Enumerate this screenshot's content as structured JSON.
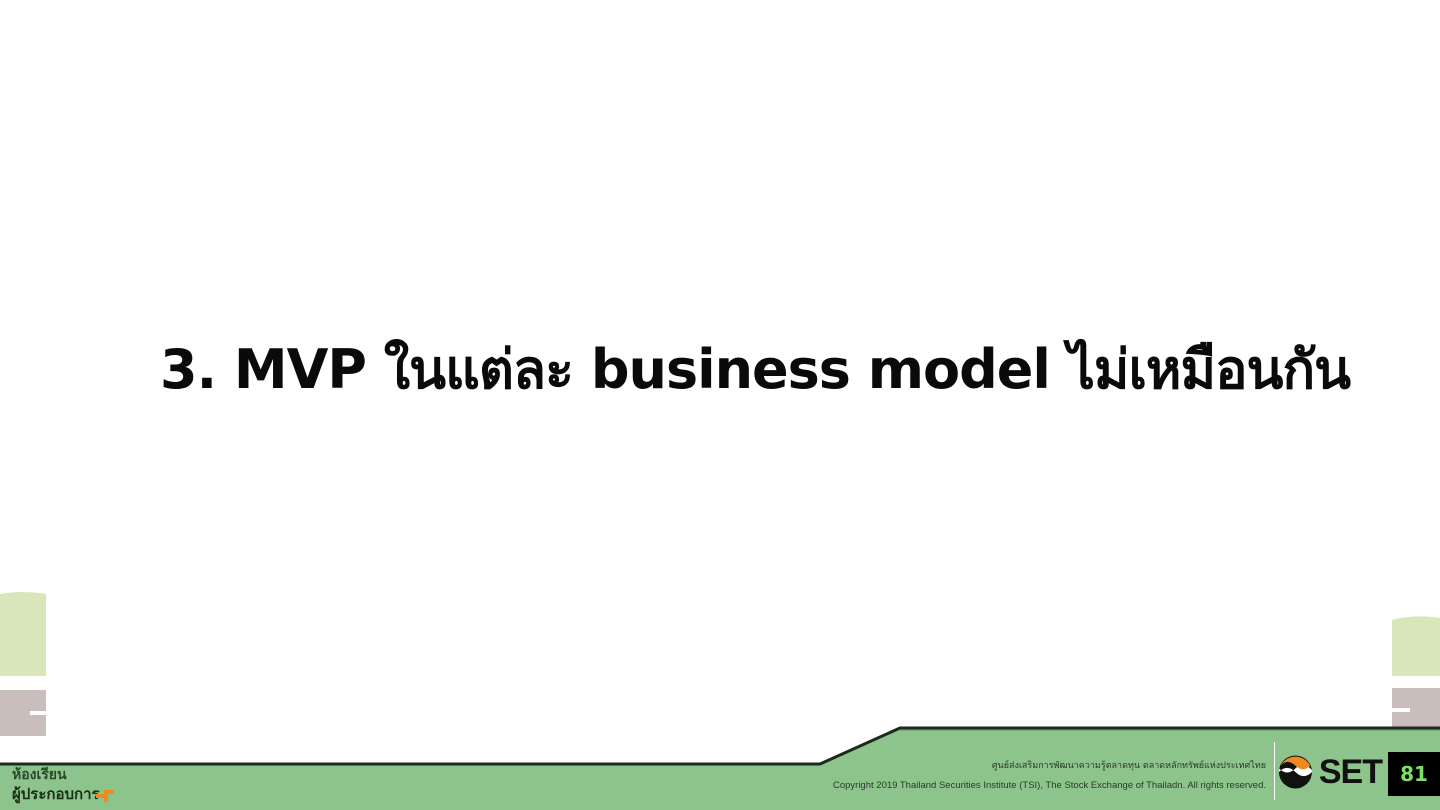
{
  "slide": {
    "title": "3. MVP ในแต่ละ business model ไม่เหมือนกัน"
  },
  "footer": {
    "tsi_thai": "ศูนย์ส่งเสริมการพัฒนาความรู้ตลาดทุน ตลาดหลักทรัพย์แห่งประเทศไทย",
    "copyright": "Copyright 2019 Thailand Securities Institute (TSI), The Stock Exchange of Thailadn. All rights reserved.",
    "set_logo_text": "SET",
    "page_number": "81",
    "brand_line1": "ห้องเรียน",
    "brand_line2": "ผู้ประกอบการ"
  },
  "colors": {
    "footer_green": "#8cc48c",
    "deco_light_green": "#d6e6b6",
    "deco_gray": "#c8bdbb",
    "page_number_green": "#7ee06a",
    "set_orange": "#f08a1c"
  },
  "icons": {
    "set_logo": "set-logo-icon",
    "brand_logo": "brand-logo-icon"
  }
}
